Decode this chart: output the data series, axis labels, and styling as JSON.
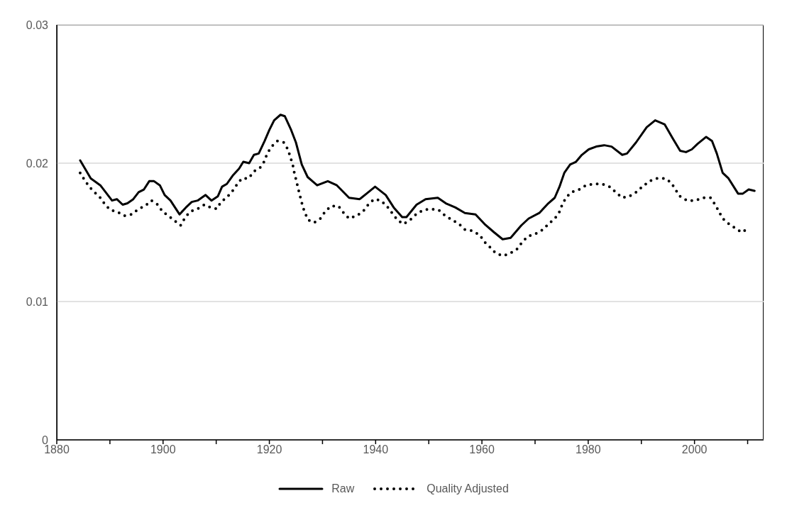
{
  "chart_data": {
    "type": "line",
    "xlim": [
      1880,
      2013
    ],
    "xticks": [
      1880,
      {
        "value": 1890,
        "label": null
      },
      1900,
      {
        "value": 1910,
        "label": null
      },
      1920,
      {
        "value": 1930,
        "label": null
      },
      1940,
      {
        "value": 1950,
        "label": null
      },
      1960,
      {
        "value": 1970,
        "label": null
      },
      1980,
      {
        "value": 1990,
        "label": null
      },
      2000,
      {
        "value": 2010,
        "label": null
      }
    ],
    "ylim": [
      0,
      0.03
    ],
    "yticks": [
      0,
      0.01,
      0.02,
      0.03
    ],
    "grid": "y",
    "legend": "bottom",
    "marker": "none",
    "series": [
      {
        "name": "Raw",
        "color": "#000000",
        "line_style": "solid",
        "x": [
          1884.4,
          1886.4,
          1888.2,
          1890.4,
          1891.3,
          1892.4,
          1893.3,
          1894.4,
          1895.4,
          1896.4,
          1897.4,
          1898.3,
          1899.4,
          1900.3,
          1901.4,
          1903.1,
          1904.3,
          1905.4,
          1906.5,
          1908,
          1909.1,
          1910.3,
          1911.1,
          1912,
          1913.1,
          1914.3,
          1915.1,
          1916.2,
          1917.1,
          1918,
          1919.1,
          1920,
          1920.9,
          1922.1,
          1922.9,
          1924.1,
          1925,
          1926.1,
          1927.2,
          1929,
          1931,
          1932.7,
          1935,
          1937,
          1938.3,
          1939.9,
          1941.9,
          1943.4,
          1945,
          1945.8,
          1947.7,
          1949.4,
          1951.7,
          1953.2,
          1955,
          1956.8,
          1958.8,
          1960.5,
          1962.3,
          1963.9,
          1965.4,
          1967.4,
          1968.8,
          1970.8,
          1972.5,
          1973.7,
          1974.6,
          1975.5,
          1976.6,
          1977.7,
          1978.8,
          1980.1,
          1981.5,
          1983,
          1984.4,
          1986.4,
          1987.3,
          1989,
          1991,
          1992.6,
          1994.4,
          1995.9,
          1997.3,
          1998.4,
          1999.5,
          2000.6,
          2002.2,
          2003.3,
          2004.2,
          2005.3,
          2006.4,
          2008.2,
          2009.1,
          2010.2,
          2011.3
        ],
        "values": [
          0.0202,
          0.0189,
          0.0184,
          0.0173,
          0.0174,
          0.017,
          0.0171,
          0.0174,
          0.0179,
          0.0181,
          0.0187,
          0.0187,
          0.0184,
          0.0177,
          0.0173,
          0.0163,
          0.0168,
          0.0172,
          0.0173,
          0.0177,
          0.0173,
          0.0176,
          0.0183,
          0.0185,
          0.0191,
          0.0196,
          0.0201,
          0.02,
          0.0206,
          0.0207,
          0.0216,
          0.0224,
          0.0231,
          0.0235,
          0.0234,
          0.0224,
          0.0215,
          0.0199,
          0.019,
          0.0184,
          0.0187,
          0.0184,
          0.0175,
          0.0174,
          0.0178,
          0.0183,
          0.0177,
          0.0168,
          0.0161,
          0.0161,
          0.017,
          0.0174,
          0.0175,
          0.0171,
          0.0168,
          0.0164,
          0.0163,
          0.0156,
          0.015,
          0.0145,
          0.0146,
          0.0155,
          0.016,
          0.0164,
          0.0171,
          0.0175,
          0.0183,
          0.0193,
          0.0199,
          0.0201,
          0.0206,
          0.021,
          0.0212,
          0.0213,
          0.0212,
          0.0206,
          0.0207,
          0.0215,
          0.0226,
          0.0231,
          0.0228,
          0.0218,
          0.0209,
          0.0208,
          0.021,
          0.0214,
          0.0219,
          0.0216,
          0.0207,
          0.0193,
          0.0189,
          0.0178,
          0.0178,
          0.0181,
          0.018
        ]
      },
      {
        "name": "Quality Adjusted",
        "color": "#000000",
        "line_style": "dotted",
        "x": [
          1884.4,
          1885.2,
          1886.1,
          1887.1,
          1888.2,
          1889.1,
          1890.1,
          1891.3,
          1892.7,
          1894.1,
          1895.4,
          1896.6,
          1897.8,
          1899,
          1899.9,
          1901,
          1902.3,
          1903.3,
          1904.2,
          1905.1,
          1906.5,
          1907.8,
          1908.9,
          1910.1,
          1910.9,
          1911.9,
          1912.9,
          1913.8,
          1914.8,
          1916.1,
          1917.1,
          1918.3,
          1919,
          1919.6,
          1920.4,
          1921.5,
          1922.7,
          1923.5,
          1923.9,
          1924.4,
          1924.7,
          1925.1,
          1925.4,
          1925.8,
          1926.2,
          1926.6,
          1927.3,
          1928.4,
          1929.6,
          1930.5,
          1931.6,
          1933,
          1934,
          1935,
          1936.4,
          1937.6,
          1938.6,
          1939.7,
          1941,
          1942.1,
          1943.1,
          1944.1,
          1945.2,
          1946.5,
          1947.6,
          1948.9,
          1950.4,
          1951.9,
          1953.1,
          1954.4,
          1955.7,
          1956.8,
          1958.3,
          1959.6,
          1960.5,
          1961.6,
          1962.6,
          1964,
          1965.4,
          1966.6,
          1967.6,
          1968.6,
          1970.1,
          1971.5,
          1972.5,
          1973.7,
          1974.5,
          1975.1,
          1975.8,
          1976.8,
          1978.3,
          1979.6,
          1981.1,
          1982.6,
          1984,
          1985.2,
          1986.4,
          1987.7,
          1989,
          1990.2,
          1991.5,
          1992.8,
          1994.4,
          1995.6,
          1996.4,
          1997.3,
          1998.6,
          2000.2,
          2001.6,
          2003,
          2003.9,
          2004.6,
          2005.3,
          2006.5,
          2007.7,
          2008.9,
          2010.2
        ],
        "values": [
          0.0193,
          0.0188,
          0.0183,
          0.0179,
          0.0175,
          0.017,
          0.0166,
          0.0165,
          0.0162,
          0.0163,
          0.0167,
          0.0169,
          0.0173,
          0.017,
          0.0165,
          0.0162,
          0.0158,
          0.0155,
          0.0161,
          0.0165,
          0.0167,
          0.017,
          0.0168,
          0.0167,
          0.0172,
          0.0175,
          0.0179,
          0.0184,
          0.0189,
          0.0189,
          0.0194,
          0.0197,
          0.0201,
          0.0207,
          0.0212,
          0.0216,
          0.0215,
          0.021,
          0.0205,
          0.0199,
          0.0193,
          0.0187,
          0.0182,
          0.0176,
          0.017,
          0.0165,
          0.0159,
          0.0157,
          0.016,
          0.0165,
          0.0169,
          0.0169,
          0.0164,
          0.016,
          0.0162,
          0.0165,
          0.017,
          0.0174,
          0.0173,
          0.0169,
          0.0164,
          0.0159,
          0.0156,
          0.0159,
          0.0163,
          0.0166,
          0.0167,
          0.0166,
          0.0162,
          0.0159,
          0.0156,
          0.0152,
          0.0151,
          0.0148,
          0.0143,
          0.0139,
          0.0135,
          0.0133,
          0.0135,
          0.0138,
          0.0143,
          0.0147,
          0.0149,
          0.0152,
          0.0156,
          0.016,
          0.0164,
          0.017,
          0.0175,
          0.0179,
          0.0181,
          0.0184,
          0.0185,
          0.0185,
          0.0183,
          0.0179,
          0.0175,
          0.0176,
          0.0179,
          0.0183,
          0.0187,
          0.0189,
          0.0189,
          0.0186,
          0.0181,
          0.0176,
          0.0173,
          0.0173,
          0.0175,
          0.0175,
          0.017,
          0.0165,
          0.016,
          0.0156,
          0.0153,
          0.015,
          0.0153
        ]
      }
    ]
  }
}
